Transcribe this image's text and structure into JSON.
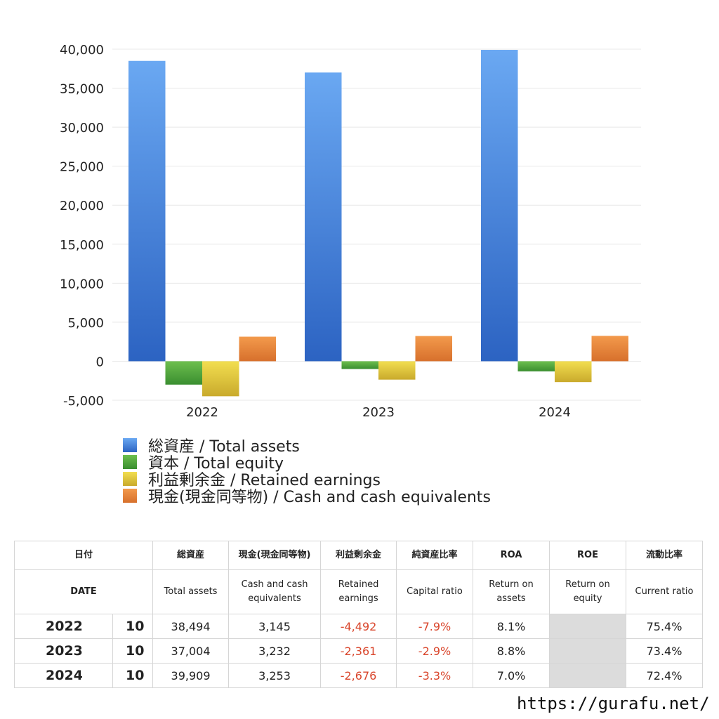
{
  "chart_data": {
    "type": "bar",
    "categories": [
      "2022",
      "2023",
      "2024"
    ],
    "ylim": [
      -5000,
      40000
    ],
    "yticks": [
      "40,000",
      "35,000",
      "30,000",
      "25,000",
      "20,000",
      "15,000",
      "10,000",
      "5,000",
      "0",
      "-5,000"
    ],
    "ytick_values": [
      40000,
      35000,
      30000,
      25000,
      20000,
      15000,
      10000,
      5000,
      0,
      -5000
    ],
    "grid": true,
    "legend_position": "bottom-left",
    "series": [
      {
        "name": "総資産 / Total assets",
        "color": "#3b7fe0",
        "color_light": "#6aa8f2",
        "color_dark": "#2c63c2",
        "values": [
          38494,
          37004,
          39909
        ]
      },
      {
        "name": "資本 / Total equity",
        "color": "#45a33a",
        "color_light": "#6dbf4e",
        "color_dark": "#3a8e30",
        "values": [
          -3000,
          -1000,
          -1300
        ]
      },
      {
        "name": "利益剰余金 / Retained earnings",
        "color": "#e3c83a",
        "color_light": "#f2de50",
        "color_dark": "#c9aa2c",
        "values": [
          -4492,
          -2361,
          -2676
        ]
      },
      {
        "name": "現金(現金同等物) / Cash and cash equivalents",
        "color": "#e8843a",
        "color_light": "#f39a4c",
        "color_dark": "#d7702c",
        "values": [
          3145,
          3232,
          3253
        ]
      }
    ]
  },
  "table": {
    "headers_ja": [
      "日付",
      "総資産",
      "現金(現金同等物)",
      "利益剰余金",
      "純資産比率",
      "ROA",
      "ROE",
      "流動比率"
    ],
    "headers_en": [
      "DATE",
      "Total assets",
      "Cash and cash equivalents",
      "Retained earnings",
      "Capital ratio",
      "Return on assets",
      "Return on equity",
      "Current ratio"
    ],
    "rows": [
      {
        "year": "2022",
        "month": "10",
        "total_assets": "38,494",
        "cash": "3,145",
        "retained": "-4,492",
        "capital_ratio": "-7.9%",
        "roa": "8.1%",
        "roe": "",
        "current_ratio": "75.4%"
      },
      {
        "year": "2023",
        "month": "10",
        "total_assets": "37,004",
        "cash": "3,232",
        "retained": "-2,361",
        "capital_ratio": "-2.9%",
        "roa": "8.8%",
        "roe": "",
        "current_ratio": "73.4%"
      },
      {
        "year": "2024",
        "month": "10",
        "total_assets": "39,909",
        "cash": "3,253",
        "retained": "-2,676",
        "capital_ratio": "-3.3%",
        "roa": "7.0%",
        "roe": "",
        "current_ratio": "72.4%"
      }
    ]
  },
  "footer": {
    "url": "https://gurafu.net/"
  }
}
